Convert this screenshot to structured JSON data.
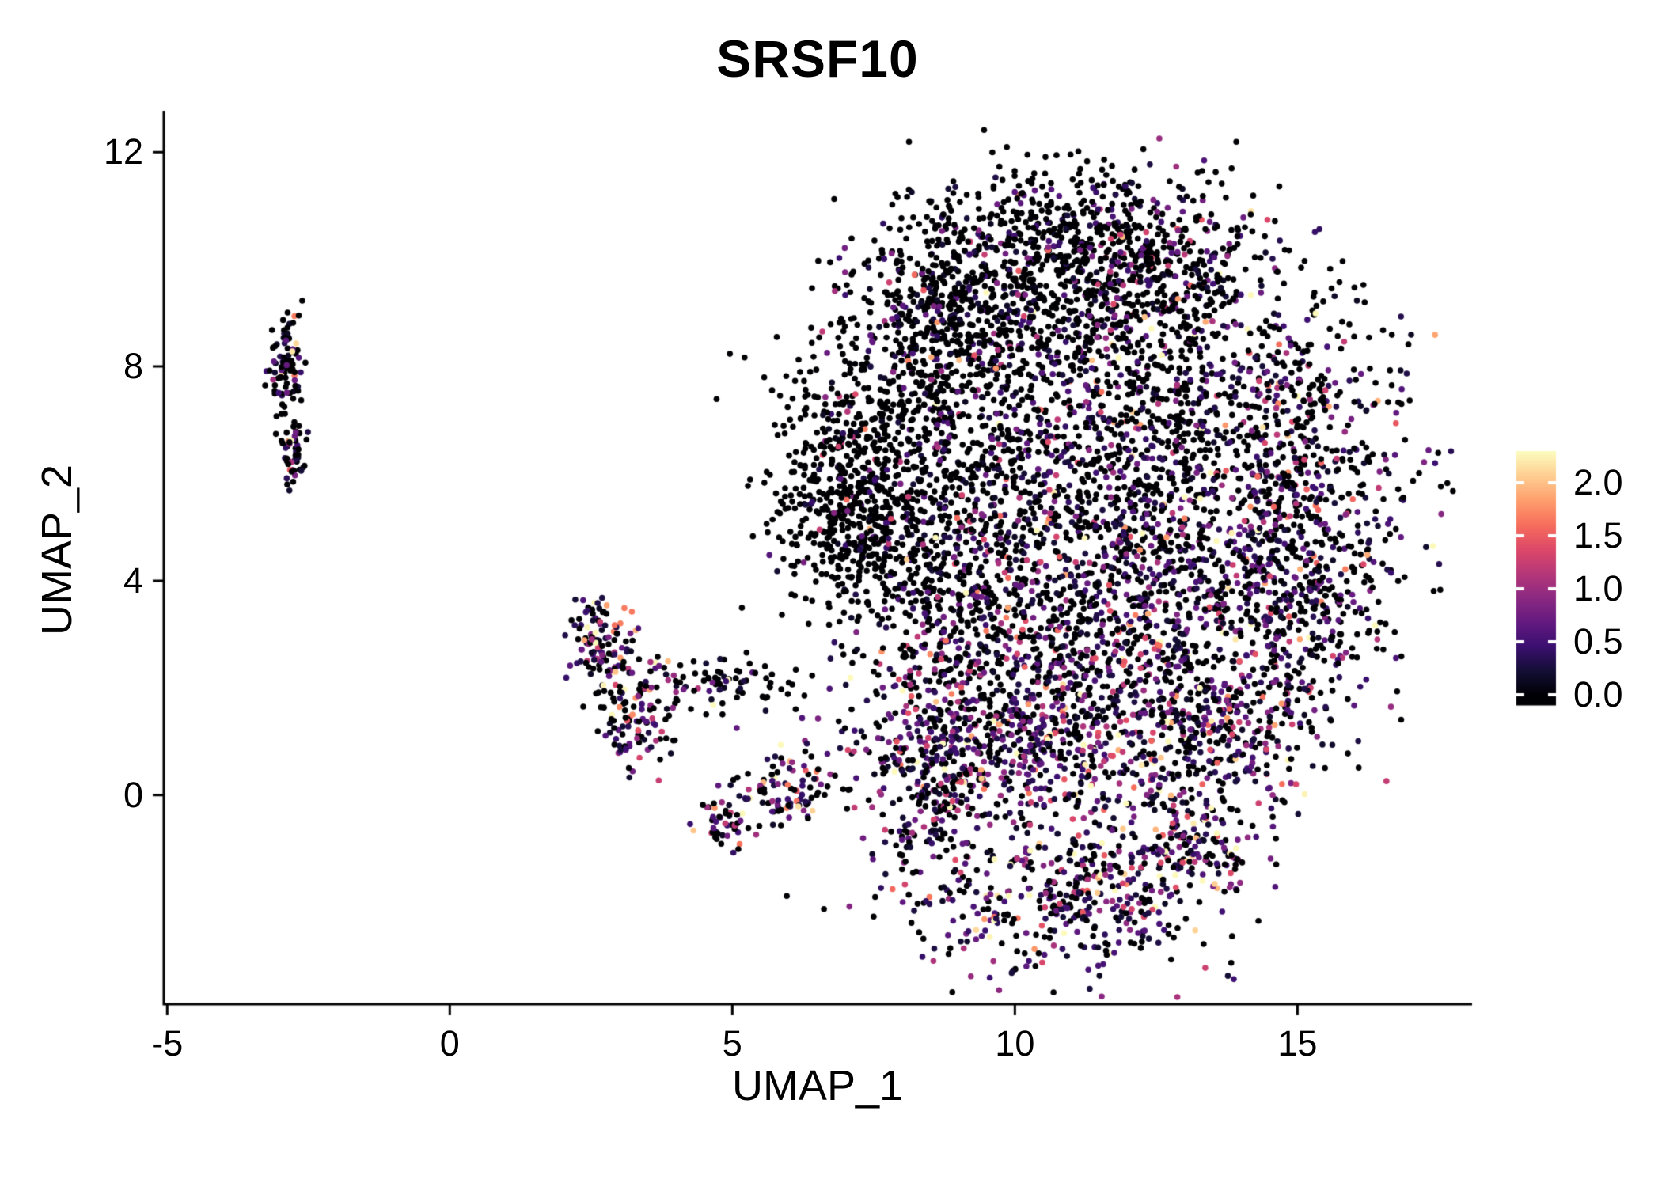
{
  "page": {
    "background": "#ffffff",
    "foreground": "#000000"
  },
  "chart_data": {
    "type": "scatter",
    "title": "SRSF10",
    "xlabel": "UMAP_1",
    "ylabel": "UMAP_2",
    "xlim": [
      -5.06,
      18.09
    ],
    "ylim": [
      -3.9,
      12.77
    ],
    "grid": false,
    "xticks": [
      {
        "label": "-5",
        "value": -5
      },
      {
        "label": "0",
        "value": 0
      },
      {
        "label": "5",
        "value": 5
      },
      {
        "label": "10",
        "value": 10
      },
      {
        "label": "15",
        "value": 15
      }
    ],
    "yticks": [
      {
        "label": "0",
        "value": 0
      },
      {
        "label": "4",
        "value": 4
      },
      {
        "label": "8",
        "value": 8
      },
      {
        "label": "12",
        "value": 12
      }
    ],
    "colorbar": {
      "position": "right",
      "vmin": 0.0,
      "vmax": 2.3,
      "colormap": "magma",
      "colormap_stops": [
        "#000004",
        "#140e36",
        "#3b0f70",
        "#641a80",
        "#8c2981",
        "#b73779",
        "#de4968",
        "#f76f5c",
        "#fe9f6d",
        "#fecf92",
        "#fcfdbf"
      ],
      "ticks": [
        {
          "label": "2.0",
          "value": 2.0
        },
        {
          "label": "1.5",
          "value": 1.5
        },
        {
          "label": "1.0",
          "value": 1.0
        },
        {
          "label": "0.5",
          "value": 0.5
        },
        {
          "label": "0.0",
          "value": 0.0
        }
      ]
    },
    "points": {
      "seed": 12345,
      "dot_radius": 3.8,
      "expr_max": 2.28,
      "clusters": [
        {
          "region": "main-top-peak",
          "x": 10.7,
          "y": 10.5,
          "sx": 1.4,
          "sy": 0.75,
          "n": 430,
          "p_zero": 0.8,
          "expr_mean": 0.45
        },
        {
          "region": "main-upper-left",
          "x": 9.0,
          "y": 9.1,
          "sx": 1.15,
          "sy": 0.85,
          "n": 430,
          "p_zero": 0.8,
          "expr_mean": 0.45
        },
        {
          "region": "main-upper-right",
          "x": 12.3,
          "y": 9.7,
          "sx": 1.2,
          "sy": 0.85,
          "n": 400,
          "p_zero": 0.72,
          "expr_mean": 0.5
        },
        {
          "region": "main-left-shoulder",
          "x": 7.7,
          "y": 7.0,
          "sx": 0.9,
          "sy": 1.1,
          "n": 400,
          "p_zero": 0.84,
          "expr_mean": 0.45
        },
        {
          "region": "main-left-wedge",
          "x": 7.0,
          "y": 5.2,
          "sx": 0.75,
          "sy": 0.8,
          "n": 380,
          "p_zero": 0.88,
          "expr_mean": 0.4
        },
        {
          "region": "main-center-upper",
          "x": 10.3,
          "y": 7.6,
          "sx": 1.35,
          "sy": 1.2,
          "n": 500,
          "p_zero": 0.62,
          "expr_mean": 0.55
        },
        {
          "region": "main-right-center",
          "x": 13.1,
          "y": 7.4,
          "sx": 1.2,
          "sy": 1.3,
          "n": 460,
          "p_zero": 0.6,
          "expr_mean": 0.55
        },
        {
          "region": "main-right-edge",
          "x": 15.1,
          "y": 6.2,
          "sx": 1.0,
          "sy": 1.6,
          "n": 460,
          "p_zero": 0.55,
          "expr_mean": 0.6
        },
        {
          "region": "main-mid-left",
          "x": 8.7,
          "y": 4.5,
          "sx": 1.0,
          "sy": 1.3,
          "n": 400,
          "p_zero": 0.7,
          "expr_mean": 0.5
        },
        {
          "region": "main-center",
          "x": 10.9,
          "y": 5.0,
          "sx": 1.3,
          "sy": 1.2,
          "n": 450,
          "p_zero": 0.62,
          "expr_mean": 0.55
        },
        {
          "region": "main-mid-right",
          "x": 13.3,
          "y": 4.4,
          "sx": 1.2,
          "sy": 1.2,
          "n": 420,
          "p_zero": 0.55,
          "expr_mean": 0.6
        },
        {
          "region": "main-far-right",
          "x": 15.3,
          "y": 3.6,
          "sx": 0.75,
          "sy": 1.0,
          "n": 240,
          "p_zero": 0.52,
          "expr_mean": 0.6
        },
        {
          "region": "main-lower-left",
          "x": 9.6,
          "y": 2.4,
          "sx": 1.2,
          "sy": 1.0,
          "n": 420,
          "p_zero": 0.5,
          "expr_mean": 0.6
        },
        {
          "region": "main-lower-right",
          "x": 12.1,
          "y": 2.4,
          "sx": 1.3,
          "sy": 1.0,
          "n": 420,
          "p_zero": 0.5,
          "expr_mean": 0.6
        },
        {
          "region": "main-bottom-band",
          "x": 10.6,
          "y": 0.7,
          "sx": 2.0,
          "sy": 0.7,
          "n": 520,
          "p_zero": 0.36,
          "expr_mean": 0.7
        },
        {
          "region": "main-bottom-right",
          "x": 13.9,
          "y": 1.1,
          "sx": 0.8,
          "sy": 0.8,
          "n": 200,
          "p_zero": 0.45,
          "expr_mean": 0.65
        },
        {
          "region": "main-bottom-lobe",
          "x": 10.9,
          "y": -1.9,
          "sx": 1.4,
          "sy": 0.75,
          "n": 460,
          "p_zero": 0.4,
          "expr_mean": 0.7
        },
        {
          "region": "main-bottom-notch",
          "x": 8.4,
          "y": 0.1,
          "sx": 0.55,
          "sy": 0.9,
          "n": 160,
          "p_zero": 0.5,
          "expr_mean": 0.6
        },
        {
          "region": "main-lobe-right",
          "x": 13.2,
          "y": -0.9,
          "sx": 0.5,
          "sy": 0.5,
          "n": 130,
          "p_zero": 0.35,
          "expr_mean": 0.8
        },
        {
          "region": "mid-cluster-top",
          "x": 2.65,
          "y": 2.8,
          "sx": 0.3,
          "sy": 0.45,
          "n": 110,
          "p_zero": 0.3,
          "expr_mean": 0.8
        },
        {
          "region": "mid-cluster-body",
          "x": 3.25,
          "y": 1.5,
          "sx": 0.35,
          "sy": 0.65,
          "n": 110,
          "p_zero": 0.45,
          "expr_mean": 0.7
        },
        {
          "region": "mid-cluster-arm",
          "x": 4.6,
          "y": 2.1,
          "sx": 0.75,
          "sy": 0.28,
          "n": 85,
          "p_zero": 0.72,
          "expr_mean": 0.5
        },
        {
          "region": "mid-cluster-foot",
          "x": 5.8,
          "y": 0.05,
          "sx": 0.5,
          "sy": 0.28,
          "n": 85,
          "p_zero": 0.5,
          "expr_mean": 0.6
        },
        {
          "region": "mid-cluster-toe",
          "x": 4.85,
          "y": -0.55,
          "sx": 0.28,
          "sy": 0.22,
          "n": 45,
          "p_zero": 0.5,
          "expr_mean": 0.6
        },
        {
          "region": "left-cluster-upper",
          "x": -2.92,
          "y": 8.0,
          "sx": 0.16,
          "sy": 0.5,
          "n": 90,
          "p_zero": 0.68,
          "expr_mean": 0.6
        },
        {
          "region": "left-cluster-lower",
          "x": -2.78,
          "y": 6.35,
          "sx": 0.12,
          "sy": 0.3,
          "n": 48,
          "p_zero": 0.45,
          "expr_mean": 0.7
        }
      ]
    }
  }
}
